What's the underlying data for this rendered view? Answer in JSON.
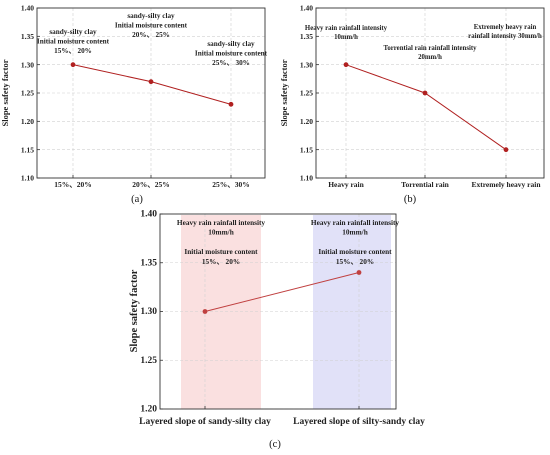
{
  "chart_data": [
    {
      "type": "line",
      "panel_label": "(a)",
      "ylabel": "Slope safety factor",
      "ylim": [
        1.1,
        1.4
      ],
      "yticks": [
        "1.10",
        "1.15",
        "1.20",
        "1.25",
        "1.30",
        "1.35",
        "1.40"
      ],
      "categories": [
        "15%、20%",
        "20%、25%",
        "25%、30%"
      ],
      "values": [
        1.3,
        1.27,
        1.23
      ],
      "grid": true,
      "color": "#b02020",
      "annotations": [
        {
          "lines": [
            "sandy-silty clay",
            "Initial moisture content",
            "15%、 20%"
          ]
        },
        {
          "lines": [
            "sandy-silty clay",
            "Initial moisture content",
            "20%、 25%"
          ]
        },
        {
          "lines": [
            "sandy-silty clay",
            "Initial moisture content",
            "25%、 30%"
          ]
        }
      ]
    },
    {
      "type": "line",
      "panel_label": "(b)",
      "ylabel": "Slope safety factor",
      "ylim": [
        1.1,
        1.4
      ],
      "yticks": [
        "1.10",
        "1.15",
        "1.20",
        "1.25",
        "1.30",
        "1.35",
        "1.40"
      ],
      "categories": [
        "Heavy rain",
        "Torrential rain",
        "Extremely heavy rain"
      ],
      "values": [
        1.3,
        1.25,
        1.15
      ],
      "grid": true,
      "color": "#b02020",
      "annotations": [
        {
          "lines": [
            "Heavy rain rainfall intensity",
            "10mm/h"
          ]
        },
        {
          "lines": [
            "Torrential rain rainfall intensity",
            "20mm/h"
          ]
        },
        {
          "lines": [
            "Extremely heavy rain",
            "rainfall intensity 30mm/h"
          ]
        }
      ]
    },
    {
      "type": "line",
      "panel_label": "(c)",
      "ylabel": "Slope safety factor",
      "ylim": [
        1.2,
        1.4
      ],
      "yticks": [
        "1.20",
        "1.25",
        "1.30",
        "1.35",
        "1.40"
      ],
      "categories": [
        "Layered slope of sandy-silty clay",
        "Layered slope of silty-sandy clay"
      ],
      "values": [
        1.3,
        1.34
      ],
      "grid": true,
      "color": "#c04040",
      "band_colors": [
        "#f9dada",
        "#dcdcf7"
      ],
      "annotations": [
        {
          "lines": [
            "Heavy rain rainfall intensity",
            "10mm/h",
            "",
            "Initial moisture content",
            "15%、 20%"
          ]
        },
        {
          "lines": [
            "Heavy rain rainfall intensity",
            "10mm/h",
            "",
            "Initial moisture content",
            "15%、 20%"
          ]
        }
      ]
    }
  ]
}
